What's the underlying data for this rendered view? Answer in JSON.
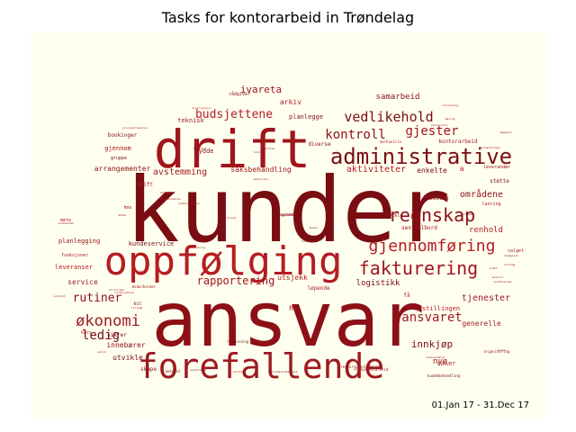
{
  "chart_data": {
    "type": "wordcloud",
    "title": "Tasks for kontorarbeid in Trøndelag",
    "period": "01.Jan 17 - 31.Dec 17",
    "background_color": "#fffff0",
    "word_colors": [
      "#7a0d12",
      "#8c1016",
      "#a0141b",
      "#b51d22",
      "#9c1a1f"
    ],
    "words": [
      {
        "text": "kunder",
        "weight": 100
      },
      {
        "text": "ansvar",
        "weight": 86
      },
      {
        "text": "drift",
        "weight": 50
      },
      {
        "text": "oppfølging",
        "weight": 42
      },
      {
        "text": "forefallende",
        "weight": 37
      },
      {
        "text": "administrative",
        "weight": 22
      },
      {
        "text": "regnskap",
        "weight": 17
      },
      {
        "text": "fakturering",
        "weight": 17
      },
      {
        "text": "gjennomføring",
        "weight": 17
      },
      {
        "text": "økonomi",
        "weight": 16
      },
      {
        "text": "vedlikehold",
        "weight": 15
      },
      {
        "text": "kontroll",
        "weight": 14
      },
      {
        "text": "gjester",
        "weight": 14
      },
      {
        "text": "budsjettene",
        "weight": 13
      },
      {
        "text": "ansvaret",
        "weight": 13
      },
      {
        "text": "ledig",
        "weight": 13
      },
      {
        "text": "rutiner",
        "weight": 12
      },
      {
        "text": "rapportering",
        "weight": 11
      },
      {
        "text": "aktiviteter",
        "weight": 10
      },
      {
        "text": "avstemming",
        "weight": 10
      },
      {
        "text": "innkjøp",
        "weight": 10
      },
      {
        "text": "områdene",
        "weight": 10
      },
      {
        "text": "ivareta",
        "weight": 10
      },
      {
        "text": "renhold",
        "weight": 9
      },
      {
        "text": "tjenester",
        "weight": 9
      },
      {
        "text": "logistikk",
        "weight": 9
      },
      {
        "text": "samarbeid",
        "weight": 9
      },
      {
        "text": "nye",
        "weight": 9
      },
      {
        "text": "arkiv",
        "weight": 8
      },
      {
        "text": "service",
        "weight": 8
      },
      {
        "text": "utvikle",
        "weight": 8
      },
      {
        "text": "innebærer",
        "weight": 8
      },
      {
        "text": "saksbehandling",
        "weight": 7
      },
      {
        "text": "utsjekk",
        "weight": 7
      },
      {
        "text": "generelle",
        "weight": 7
      },
      {
        "text": "enkelte",
        "weight": 7
      },
      {
        "text": "arrangementer",
        "weight": 7
      },
      {
        "text": "hr",
        "weight": 7
      },
      {
        "text": "a",
        "weight": 7
      },
      {
        "text": "teknisk",
        "weight": 6
      },
      {
        "text": "planlegge",
        "weight": 6
      },
      {
        "text": "rydde",
        "weight": 6
      },
      {
        "text": "gjennom",
        "weight": 6
      },
      {
        "text": "stillingen",
        "weight": 6
      },
      {
        "text": "saker",
        "weight": 6
      },
      {
        "text": "kundeservice",
        "weight": 5
      },
      {
        "text": "bookinger",
        "weight": 5
      },
      {
        "text": "planlegging",
        "weight": 5
      },
      {
        "text": "leveranser",
        "weight": 5
      },
      {
        "text": "kontorarbeid",
        "weight": 5
      },
      {
        "text": "støtte",
        "weight": 5
      },
      {
        "text": "diverse",
        "weight": 5
      },
      {
        "text": "sentralbord",
        "weight": 5
      },
      {
        "text": "skift",
        "weight": 5
      },
      {
        "text": "løpende",
        "weight": 5
      },
      {
        "text": "sikrer",
        "weight": 5
      },
      {
        "text": "skape",
        "weight": 5
      },
      {
        "text": "lossing",
        "weight": 5
      },
      {
        "text": "få",
        "weight": 5
      },
      {
        "text": "kurs",
        "weight": 4
      },
      {
        "text": "gruppe",
        "weight": 4
      },
      {
        "text": "rådgiver",
        "weight": 4
      },
      {
        "text": "hms",
        "weight": 4
      },
      {
        "text": "møte",
        "weight": 4
      },
      {
        "text": "funksjoner",
        "weight": 4
      },
      {
        "text": "bil",
        "weight": 4
      },
      {
        "text": "videreutvikle",
        "weight": 4
      },
      {
        "text": "leverandør",
        "weight": 4
      },
      {
        "text": "lasting",
        "weight": 4
      },
      {
        "text": "salget",
        "weight": 4
      },
      {
        "text": "rådgivning",
        "weight": 3
      },
      {
        "text": "ressursplanlegging",
        "weight": 3
      },
      {
        "text": "resepsjonsarbeid",
        "weight": 3
      },
      {
        "text": "merkantile",
        "weight": 3
      },
      {
        "text": "organisering",
        "weight": 3
      },
      {
        "text": "kundebehandling",
        "weight": 3
      },
      {
        "text": "ankomst",
        "weight": 3
      },
      {
        "text": "medarbeider",
        "weight": 3
      },
      {
        "text": "prosjektledelse",
        "weight": 2
      },
      {
        "text": "produkt",
        "weight": 2
      },
      {
        "text": "vedlikeholdsarbeid",
        "weight": 2
      },
      {
        "text": "oppgaver",
        "weight": 2
      },
      {
        "text": "materiell",
        "weight": 2
      },
      {
        "text": "oppfølginger",
        "weight": 2
      },
      {
        "text": "beslutning",
        "weight": 2
      },
      {
        "text": "orden",
        "weight": 2
      },
      {
        "text": "bestilling",
        "weight": 2
      },
      {
        "text": "levering",
        "weight": 2
      },
      {
        "text": "forberedelse",
        "weight": 2
      },
      {
        "text": "innlegg",
        "weight": 2
      },
      {
        "text": "håndtering",
        "weight": 2
      },
      {
        "text": "avvik",
        "weight": 2
      },
      {
        "text": "leverandører",
        "weight": 2
      },
      {
        "text": "mottak",
        "weight": 2
      },
      {
        "text": "kvalitet",
        "weight": 2
      },
      {
        "text": "resepsjon",
        "weight": 2
      },
      {
        "text": "varemottak",
        "weight": 2
      },
      {
        "text": "opplæring",
        "weight": 2
      },
      {
        "text": "distribusjon",
        "weight": 2
      },
      {
        "text": "gruppeledelse",
        "weight": 2
      },
      {
        "text": "ansettelse",
        "weight": 2
      },
      {
        "text": "sorge",
        "weight": 2
      },
      {
        "text": "tillegg",
        "weight": 2
      },
      {
        "text": "sjekker",
        "weight": 2
      },
      {
        "text": "stillinger",
        "weight": 2
      },
      {
        "text": "problemer",
        "weight": 2
      },
      {
        "text": "aktør",
        "weight": 2
      },
      {
        "text": "forhandlinger",
        "weight": 2
      },
      {
        "text": "bestilt",
        "weight": 2
      },
      {
        "text": "kommunikasjon",
        "weight": 2
      },
      {
        "text": "beste",
        "weight": 2
      },
      {
        "text": "bæring",
        "weight": 2
      },
      {
        "text": "lovkrav",
        "weight": 2
      },
      {
        "text": "veiledning",
        "weight": 2
      },
      {
        "text": "verktøy",
        "weight": 2
      },
      {
        "text": "oppsett",
        "weight": 2
      },
      {
        "text": "systemer",
        "weight": 2
      }
    ]
  }
}
